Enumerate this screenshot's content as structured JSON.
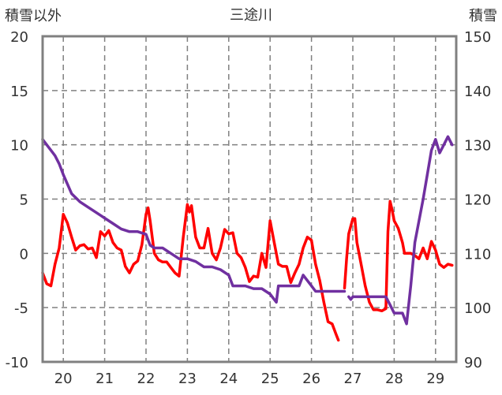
{
  "chart_data": {
    "type": "line",
    "title": "三途川",
    "y_left_label": "積雪以外",
    "y_right_label": "積雪",
    "x_ticks": [
      "20",
      "21",
      "22",
      "23",
      "24",
      "25",
      "26",
      "27",
      "28",
      "29"
    ],
    "x_range": [
      19.5,
      29.5
    ],
    "y_left_ticks": [
      "20",
      "15",
      "10",
      "5",
      "0",
      "-5",
      "-10"
    ],
    "y_left_range": [
      -10,
      20
    ],
    "y_right_ticks": [
      "150",
      "140",
      "130",
      "120",
      "110",
      "100",
      "90"
    ],
    "y_right_range": [
      90,
      150
    ],
    "grid": true,
    "series": [
      {
        "axis": "left",
        "color": "#ff0000",
        "segments": [
          [
            [
              19.5,
              -1.8
            ],
            [
              19.6,
              -2.8
            ],
            [
              19.7,
              -3.0
            ],
            [
              19.8,
              -1.0
            ],
            [
              19.9,
              0.5
            ],
            [
              20.0,
              3.6
            ],
            [
              20.1,
              2.8
            ],
            [
              20.2,
              1.5
            ],
            [
              20.3,
              0.3
            ],
            [
              20.4,
              0.7
            ],
            [
              20.5,
              0.8
            ],
            [
              20.6,
              0.4
            ],
            [
              20.7,
              0.5
            ],
            [
              20.8,
              -0.4
            ],
            [
              20.9,
              2.0
            ],
            [
              21.0,
              1.6
            ],
            [
              21.1,
              2.1
            ],
            [
              21.2,
              1.0
            ],
            [
              21.3,
              0.5
            ],
            [
              21.4,
              0.3
            ],
            [
              21.5,
              -1.2
            ],
            [
              21.6,
              -1.8
            ],
            [
              21.7,
              -1.0
            ],
            [
              21.8,
              -0.7
            ],
            [
              21.9,
              0.8
            ],
            [
              22.0,
              3.6
            ],
            [
              22.05,
              4.2
            ],
            [
              22.1,
              3.0
            ],
            [
              22.2,
              0.0
            ],
            [
              22.3,
              -0.6
            ],
            [
              22.4,
              -0.8
            ],
            [
              22.5,
              -0.8
            ],
            [
              22.6,
              -1.3
            ],
            [
              22.7,
              -1.8
            ],
            [
              22.8,
              -2.1
            ],
            [
              22.9,
              1.5
            ],
            [
              23.0,
              4.5
            ],
            [
              23.05,
              3.8
            ],
            [
              23.1,
              4.4
            ],
            [
              23.2,
              1.5
            ],
            [
              23.3,
              0.5
            ],
            [
              23.4,
              0.5
            ],
            [
              23.5,
              2.3
            ],
            [
              23.6,
              0.0
            ],
            [
              23.7,
              -0.6
            ],
            [
              23.8,
              0.5
            ],
            [
              23.9,
              2.2
            ],
            [
              24.0,
              1.8
            ],
            [
              24.1,
              1.9
            ],
            [
              24.2,
              0.0
            ],
            [
              24.3,
              -0.4
            ],
            [
              24.4,
              -1.3
            ],
            [
              24.5,
              -2.6
            ],
            [
              24.6,
              -2.1
            ],
            [
              24.7,
              -2.2
            ],
            [
              24.8,
              0.0
            ],
            [
              24.9,
              -1.3
            ],
            [
              25.0,
              3.0
            ],
            [
              25.1,
              1.0
            ],
            [
              25.2,
              -1.0
            ],
            [
              25.3,
              -1.2
            ],
            [
              25.4,
              -1.2
            ],
            [
              25.5,
              -2.7
            ],
            [
              25.6,
              -1.8
            ],
            [
              25.7,
              -1.0
            ],
            [
              25.8,
              0.5
            ],
            [
              25.9,
              1.5
            ],
            [
              26.0,
              1.2
            ],
            [
              26.1,
              -1.0
            ],
            [
              26.2,
              -2.5
            ],
            [
              26.3,
              -4.5
            ],
            [
              26.4,
              -6.3
            ],
            [
              26.5,
              -6.5
            ],
            [
              26.6,
              -7.5
            ],
            [
              26.65,
              -8.0
            ]
          ],
          [
            [
              26.8,
              -3.2
            ],
            [
              26.85,
              -0.5
            ],
            [
              26.9,
              1.8
            ],
            [
              27.0,
              3.2
            ],
            [
              27.05,
              3.2
            ],
            [
              27.1,
              1.0
            ],
            [
              27.2,
              -1.0
            ],
            [
              27.3,
              -3.0
            ],
            [
              27.4,
              -4.5
            ],
            [
              27.5,
              -5.2
            ],
            [
              27.6,
              -5.2
            ],
            [
              27.7,
              -5.3
            ],
            [
              27.8,
              -5.1
            ],
            [
              27.85,
              2.0
            ],
            [
              27.9,
              4.8
            ],
            [
              27.95,
              4.0
            ],
            [
              28.0,
              3.0
            ],
            [
              28.1,
              2.3
            ],
            [
              28.2,
              1.0
            ],
            [
              28.25,
              0.0
            ],
            [
              28.3,
              0.0
            ],
            [
              28.4,
              0.0
            ],
            [
              28.5,
              -0.2
            ],
            [
              28.6,
              -0.5
            ],
            [
              28.7,
              0.5
            ],
            [
              28.8,
              -0.5
            ],
            [
              28.9,
              1.1
            ],
            [
              29.0,
              0.3
            ],
            [
              29.1,
              -1.0
            ],
            [
              29.2,
              -1.3
            ],
            [
              29.3,
              -1.0
            ],
            [
              29.4,
              -1.1
            ]
          ]
        ]
      },
      {
        "axis": "right",
        "color": "#7030a0",
        "segments": [
          [
            [
              19.5,
              131.0
            ],
            [
              19.6,
              130.0
            ],
            [
              19.7,
              129.0
            ],
            [
              19.8,
              128.0
            ],
            [
              19.9,
              126.5
            ],
            [
              20.0,
              124.5
            ],
            [
              20.2,
              121.0
            ],
            [
              20.4,
              119.5
            ],
            [
              20.6,
              118.5
            ],
            [
              20.8,
              117.5
            ],
            [
              21.0,
              116.5
            ],
            [
              21.2,
              115.5
            ],
            [
              21.4,
              114.5
            ],
            [
              21.6,
              114.0
            ],
            [
              21.8,
              114.0
            ],
            [
              22.0,
              113.5
            ],
            [
              22.1,
              111.5
            ],
            [
              22.2,
              111.0
            ],
            [
              22.4,
              111.0
            ],
            [
              22.6,
              110.0
            ],
            [
              22.8,
              109.0
            ],
            [
              23.0,
              109.0
            ],
            [
              23.2,
              108.5
            ],
            [
              23.4,
              107.5
            ],
            [
              23.6,
              107.5
            ],
            [
              23.8,
              107.0
            ],
            [
              24.0,
              106.0
            ],
            [
              24.1,
              104.0
            ],
            [
              24.2,
              104.0
            ],
            [
              24.4,
              104.0
            ],
            [
              24.6,
              103.5
            ],
            [
              24.8,
              103.5
            ],
            [
              25.0,
              102.5
            ],
            [
              25.15,
              101.0
            ],
            [
              25.2,
              104.0
            ],
            [
              25.3,
              104.0
            ],
            [
              25.5,
              104.0
            ],
            [
              25.7,
              104.0
            ],
            [
              25.8,
              106.0
            ],
            [
              26.0,
              104.0
            ],
            [
              26.1,
              103.0
            ],
            [
              26.3,
              103.0
            ],
            [
              26.5,
              103.0
            ],
            [
              26.6,
              103.0
            ],
            [
              26.8,
              103.0
            ]
          ],
          [
            [
              26.9,
              102.0
            ],
            [
              26.95,
              101.5
            ],
            [
              27.0,
              102.0
            ],
            [
              27.2,
              102.0
            ],
            [
              27.4,
              102.0
            ],
            [
              27.6,
              102.0
            ],
            [
              27.8,
              102.0
            ],
            [
              27.9,
              100.5
            ],
            [
              28.0,
              99.0
            ],
            [
              28.2,
              99.0
            ],
            [
              28.3,
              97.0
            ],
            [
              28.4,
              104.0
            ],
            [
              28.5,
              112.0
            ],
            [
              28.7,
              120.0
            ],
            [
              28.9,
              129.0
            ],
            [
              29.0,
              131.0
            ],
            [
              29.1,
              128.5
            ],
            [
              29.2,
              130.0
            ],
            [
              29.3,
              131.5
            ],
            [
              29.4,
              130.0
            ]
          ]
        ]
      }
    ]
  }
}
